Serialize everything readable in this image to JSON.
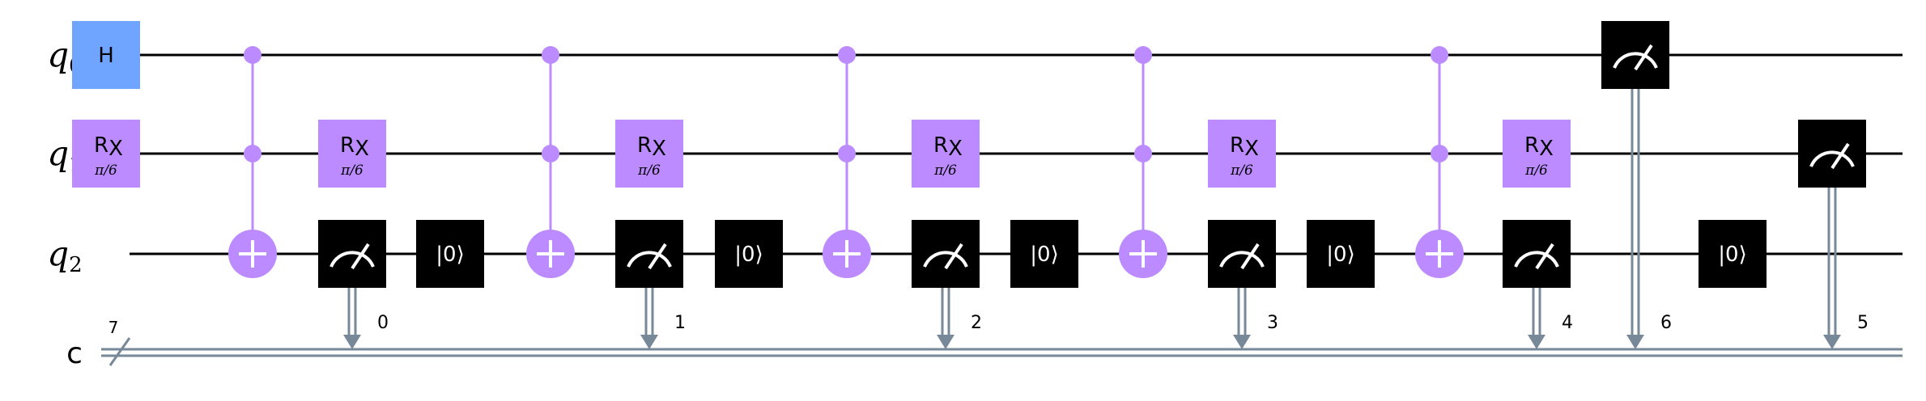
{
  "qubits": [
    {
      "name": "q",
      "index": "0"
    },
    {
      "name": "q",
      "index": "1"
    },
    {
      "name": "q",
      "index": "2"
    }
  ],
  "classical_register": {
    "name": "c",
    "size": "7"
  },
  "colors": {
    "h_gate": "#6fa4ff",
    "rx_gate": "#bb8bff",
    "control": "#bb8bff",
    "measure_box": "#000000",
    "classical_wire": "#778899",
    "wire": "#000000"
  },
  "operations": [
    {
      "type": "h",
      "qubit": 0,
      "column": 0,
      "label": "H"
    },
    {
      "type": "rx",
      "qubit": 1,
      "column": 0,
      "label": "R",
      "sub": "X",
      "param": "π/6"
    },
    {
      "type": "ccx",
      "controls": [
        0,
        1
      ],
      "target": 2,
      "column": 1
    },
    {
      "type": "rx",
      "qubit": 1,
      "column": 2,
      "label": "R",
      "sub": "X",
      "param": "π/6"
    },
    {
      "type": "measure",
      "qubit": 2,
      "column": 2,
      "clbit": "0"
    },
    {
      "type": "reset",
      "qubit": 2,
      "column": 3,
      "label": "|0⟩"
    },
    {
      "type": "ccx",
      "controls": [
        0,
        1
      ],
      "target": 2,
      "column": 4
    },
    {
      "type": "rx",
      "qubit": 1,
      "column": 5,
      "label": "R",
      "sub": "X",
      "param": "π/6"
    },
    {
      "type": "measure",
      "qubit": 2,
      "column": 5,
      "clbit": "1"
    },
    {
      "type": "reset",
      "qubit": 2,
      "column": 6,
      "label": "|0⟩"
    },
    {
      "type": "ccx",
      "controls": [
        0,
        1
      ],
      "target": 2,
      "column": 7
    },
    {
      "type": "rx",
      "qubit": 1,
      "column": 8,
      "label": "R",
      "sub": "X",
      "param": "π/6"
    },
    {
      "type": "measure",
      "qubit": 2,
      "column": 8,
      "clbit": "2"
    },
    {
      "type": "reset",
      "qubit": 2,
      "column": 9,
      "label": "|0⟩"
    },
    {
      "type": "ccx",
      "controls": [
        0,
        1
      ],
      "target": 2,
      "column": 10
    },
    {
      "type": "rx",
      "qubit": 1,
      "column": 11,
      "label": "R",
      "sub": "X",
      "param": "π/6"
    },
    {
      "type": "measure",
      "qubit": 2,
      "column": 11,
      "clbit": "3"
    },
    {
      "type": "reset",
      "qubit": 2,
      "column": 12,
      "label": "|0⟩"
    },
    {
      "type": "ccx",
      "controls": [
        0,
        1
      ],
      "target": 2,
      "column": 13
    },
    {
      "type": "rx",
      "qubit": 1,
      "column": 14,
      "label": "R",
      "sub": "X",
      "param": "π/6"
    },
    {
      "type": "measure",
      "qubit": 2,
      "column": 14,
      "clbit": "4"
    },
    {
      "type": "measure",
      "qubit": 0,
      "column": 15,
      "clbit": "6"
    },
    {
      "type": "reset",
      "qubit": 2,
      "column": 16,
      "label": "|0⟩"
    },
    {
      "type": "measure",
      "qubit": 1,
      "column": 17,
      "clbit": "5"
    }
  ]
}
